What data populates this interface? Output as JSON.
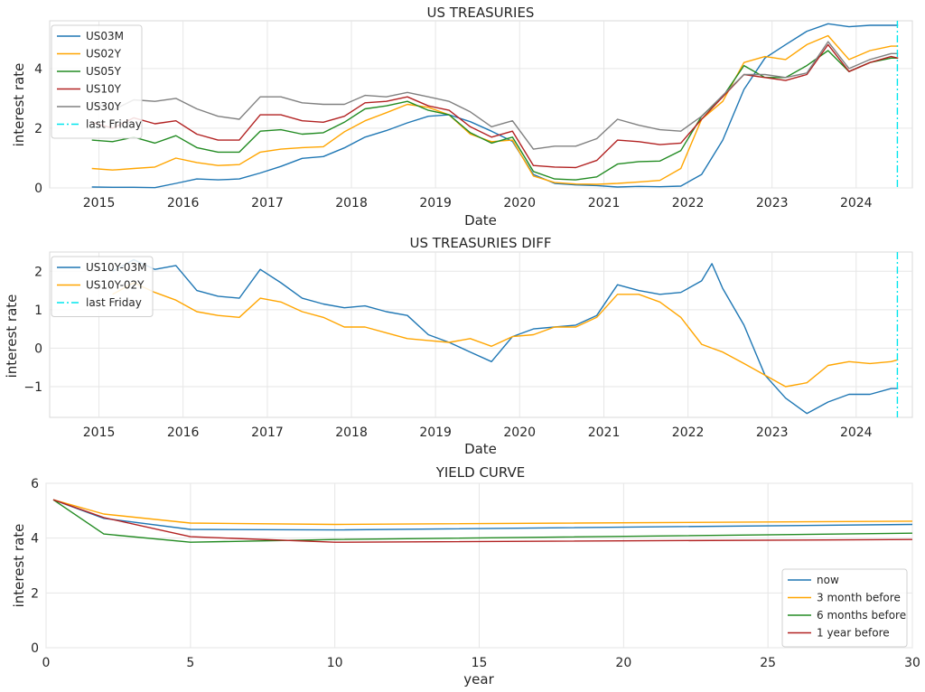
{
  "chart_data": [
    {
      "type": "line",
      "title": "US TREASURIES",
      "xlabel": "Date",
      "ylabel": "interest rate",
      "xlim": [
        "2014-06-01",
        "2024-09-01"
      ],
      "ylim": [
        0,
        5.6
      ],
      "x_ticks": [
        "2015",
        "2016",
        "2017",
        "2018",
        "2019",
        "2020",
        "2021",
        "2022",
        "2023",
        "2024"
      ],
      "y_ticks": [
        "0",
        "2",
        "4"
      ],
      "grid": true,
      "legend_position": "top-left",
      "x": [
        "2014-12-01",
        "2015-03-01",
        "2015-06-01",
        "2015-09-01",
        "2015-12-01",
        "2016-03-01",
        "2016-06-01",
        "2016-09-01",
        "2016-12-01",
        "2017-03-01",
        "2017-06-01",
        "2017-09-01",
        "2017-12-01",
        "2018-03-01",
        "2018-06-01",
        "2018-09-01",
        "2018-12-01",
        "2019-03-01",
        "2019-06-01",
        "2019-09-01",
        "2019-12-01",
        "2020-03-01",
        "2020-06-01",
        "2020-09-01",
        "2020-12-01",
        "2021-03-01",
        "2021-06-01",
        "2021-09-01",
        "2021-12-01",
        "2022-03-01",
        "2022-06-01",
        "2022-09-01",
        "2022-12-01",
        "2023-03-01",
        "2023-06-01",
        "2023-09-01",
        "2023-12-01",
        "2024-03-01",
        "2024-06-01",
        "2024-07-01"
      ],
      "series": [
        {
          "name": "US03M",
          "color": "#1f77b4",
          "values": [
            0.03,
            0.02,
            0.02,
            0.01,
            0.15,
            0.3,
            0.27,
            0.3,
            0.5,
            0.72,
            0.99,
            1.05,
            1.34,
            1.7,
            1.92,
            2.18,
            2.4,
            2.45,
            2.22,
            1.9,
            1.56,
            0.45,
            0.15,
            0.1,
            0.08,
            0.03,
            0.05,
            0.04,
            0.06,
            0.45,
            1.6,
            3.3,
            4.35,
            4.8,
            5.25,
            5.5,
            5.4,
            5.45,
            5.45,
            5.45
          ]
        },
        {
          "name": "US02Y",
          "color": "#ffa500",
          "values": [
            0.65,
            0.6,
            0.65,
            0.7,
            1.0,
            0.85,
            0.75,
            0.78,
            1.2,
            1.3,
            1.35,
            1.38,
            1.88,
            2.25,
            2.52,
            2.8,
            2.7,
            2.45,
            1.8,
            1.55,
            1.6,
            0.4,
            0.18,
            0.13,
            0.12,
            0.15,
            0.2,
            0.25,
            0.65,
            2.3,
            2.9,
            4.2,
            4.4,
            4.3,
            4.8,
            5.1,
            4.3,
            4.6,
            4.75,
            4.75
          ]
        },
        {
          "name": "US05Y",
          "color": "#228b22",
          "values": [
            1.6,
            1.55,
            1.7,
            1.5,
            1.75,
            1.35,
            1.2,
            1.2,
            1.9,
            1.95,
            1.8,
            1.85,
            2.2,
            2.65,
            2.75,
            2.9,
            2.6,
            2.45,
            1.85,
            1.5,
            1.7,
            0.55,
            0.3,
            0.27,
            0.37,
            0.8,
            0.88,
            0.9,
            1.25,
            2.4,
            3.05,
            4.1,
            3.7,
            3.7,
            4.1,
            4.6,
            3.9,
            4.2,
            4.35,
            4.35
          ]
        },
        {
          "name": "US10Y",
          "color": "#b22222",
          "values": [
            2.2,
            2.0,
            2.35,
            2.15,
            2.25,
            1.8,
            1.6,
            1.6,
            2.45,
            2.45,
            2.25,
            2.2,
            2.4,
            2.85,
            2.9,
            3.05,
            2.75,
            2.6,
            2.05,
            1.7,
            1.9,
            0.75,
            0.7,
            0.68,
            0.92,
            1.6,
            1.55,
            1.45,
            1.5,
            2.3,
            3.05,
            3.8,
            3.7,
            3.6,
            3.8,
            4.8,
            3.9,
            4.2,
            4.4,
            4.35
          ]
        },
        {
          "name": "US30Y",
          "color": "#808080",
          "values": [
            2.9,
            2.6,
            2.95,
            2.9,
            3.0,
            2.65,
            2.4,
            2.3,
            3.05,
            3.05,
            2.85,
            2.8,
            2.8,
            3.1,
            3.05,
            3.2,
            3.05,
            2.9,
            2.55,
            2.05,
            2.25,
            1.3,
            1.4,
            1.4,
            1.65,
            2.3,
            2.1,
            1.95,
            1.9,
            2.4,
            3.1,
            3.8,
            3.8,
            3.7,
            3.85,
            4.9,
            4.0,
            4.3,
            4.5,
            4.5
          ]
        }
      ],
      "vlines": [
        {
          "name": "last Friday",
          "x": "2024-06-28",
          "color": "#00e5ee",
          "style": "dashdot"
        }
      ]
    },
    {
      "type": "line",
      "title": "US TREASURIES DIFF",
      "xlabel": "Date",
      "ylabel": "interest rate",
      "xlim": [
        "2014-06-01",
        "2024-09-01"
      ],
      "ylim": [
        -1.8,
        2.5
      ],
      "x_ticks": [
        "2015",
        "2016",
        "2017",
        "2018",
        "2019",
        "2020",
        "2021",
        "2022",
        "2023",
        "2024"
      ],
      "y_ticks": [
        "2",
        "1",
        "0",
        "−1"
      ],
      "grid": true,
      "legend_position": "top-left",
      "x": [
        "2015-03-01",
        "2015-06-01",
        "2015-09-01",
        "2015-12-01",
        "2016-03-01",
        "2016-06-01",
        "2016-09-01",
        "2016-12-01",
        "2017-03-01",
        "2017-06-01",
        "2017-09-01",
        "2017-12-01",
        "2018-03-01",
        "2018-06-01",
        "2018-09-01",
        "2018-12-01",
        "2019-03-01",
        "2019-06-01",
        "2019-09-01",
        "2019-12-01",
        "2020-03-01",
        "2020-06-01",
        "2020-09-01",
        "2020-12-01",
        "2021-03-01",
        "2021-06-01",
        "2021-09-01",
        "2021-12-01",
        "2022-03-01",
        "2022-04-15",
        "2022-06-01",
        "2022-09-01",
        "2022-12-01",
        "2023-03-01",
        "2023-06-01",
        "2023-09-01",
        "2023-12-01",
        "2024-03-01",
        "2024-06-01",
        "2024-07-01"
      ],
      "series": [
        {
          "name": "US10Y-03M",
          "color": "#1f77b4",
          "values": [
            2.0,
            2.3,
            2.05,
            2.15,
            1.5,
            1.35,
            1.3,
            2.05,
            1.7,
            1.3,
            1.15,
            1.05,
            1.1,
            0.95,
            0.85,
            0.35,
            0.15,
            -0.1,
            -0.35,
            0.3,
            0.5,
            0.55,
            0.6,
            0.85,
            1.65,
            1.5,
            1.4,
            1.45,
            1.75,
            2.2,
            1.55,
            0.6,
            -0.7,
            -1.3,
            -1.7,
            -1.4,
            -1.2,
            -1.2,
            -1.05,
            -1.05
          ]
        },
        {
          "name": "US10Y-02Y",
          "color": "#ffa500",
          "values": [
            1.4,
            1.7,
            1.45,
            1.25,
            0.95,
            0.85,
            0.8,
            1.3,
            1.2,
            0.95,
            0.8,
            0.55,
            0.55,
            0.4,
            0.25,
            0.2,
            0.15,
            0.25,
            0.05,
            0.3,
            0.35,
            0.55,
            0.55,
            0.8,
            1.4,
            1.4,
            1.2,
            0.8,
            0.1,
            0.0,
            -0.1,
            -0.4,
            -0.7,
            -1.0,
            -0.9,
            -0.45,
            -0.35,
            -0.4,
            -0.35,
            -0.3
          ]
        }
      ],
      "vlines": [
        {
          "name": "last Friday",
          "x": "2024-06-28",
          "color": "#00e5ee",
          "style": "dashdot"
        }
      ]
    },
    {
      "type": "line",
      "title": "YIELD CURVE",
      "xlabel": "year",
      "ylabel": "interest rate",
      "xlim": [
        0,
        30
      ],
      "ylim": [
        0,
        6
      ],
      "x_ticks": [
        "0",
        "5",
        "10",
        "15",
        "20",
        "25",
        "30"
      ],
      "y_ticks": [
        "0",
        "2",
        "4",
        "6"
      ],
      "grid": true,
      "legend_position": "bottom-right",
      "x": [
        0.25,
        2,
        5,
        10,
        30
      ],
      "series": [
        {
          "name": "now",
          "color": "#1f77b4",
          "values": [
            5.4,
            4.72,
            4.32,
            4.3,
            4.5
          ]
        },
        {
          "name": "3 month before",
          "color": "#ffa500",
          "values": [
            5.4,
            4.88,
            4.55,
            4.5,
            4.62
          ]
        },
        {
          "name": "6 months before",
          "color": "#228b22",
          "values": [
            5.4,
            4.15,
            3.85,
            3.95,
            4.18
          ]
        },
        {
          "name": "1 year before",
          "color": "#b22222",
          "values": [
            5.4,
            4.75,
            4.05,
            3.85,
            3.95
          ]
        }
      ]
    }
  ]
}
